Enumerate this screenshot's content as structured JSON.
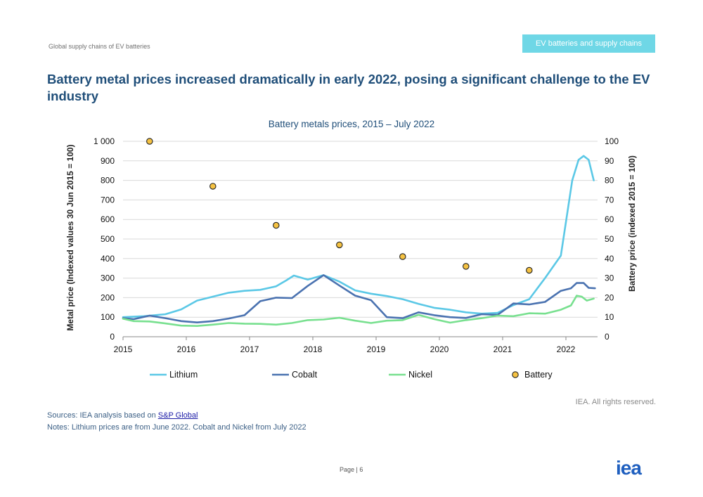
{
  "header": {
    "left_text": "Global supply chains of EV batteries",
    "section_tag": "EV batteries and supply chains"
  },
  "title": "Battery metal prices increased dramatically in early 2022, posing a significant challenge to the EV industry",
  "colors": {
    "lithium": "#5bc8e6",
    "cobalt": "#4a72b0",
    "nickel": "#78e08f",
    "battery": "#f5c242",
    "title": "#1f4e79",
    "tag_bg": "#6fd7e6"
  },
  "chart_data": {
    "type": "line",
    "title": "Battery metals prices, 2015 – July 2022",
    "ylabel": "Metal price (Indexed values 30 Jun 2015 = 100)",
    "y2label": "Battery price (indexed 2015 = 100)",
    "xlim": [
      2015,
      2022.5
    ],
    "ylim": [
      0,
      1000
    ],
    "y2lim": [
      0,
      100
    ],
    "x_ticks": [
      "2015",
      "2016",
      "2017",
      "2018",
      "2019",
      "2020",
      "2021",
      "2022"
    ],
    "y_ticks": [
      "0",
      "100",
      "200",
      "300",
      "400",
      "500",
      "600",
      "700",
      "800",
      "900",
      "1 000"
    ],
    "y2_ticks": [
      "0",
      "10",
      "20",
      "30",
      "40",
      "50",
      "60",
      "70",
      "80",
      "90",
      "100"
    ],
    "legend_placement": "bottom",
    "series": [
      {
        "name": "Lithium",
        "color": "#5bc8e6",
        "axis": "left",
        "points": [
          [
            2015.0,
            100
          ],
          [
            2015.33,
            105
          ],
          [
            2015.67,
            115
          ],
          [
            2015.92,
            140
          ],
          [
            2016.17,
            185
          ],
          [
            2016.42,
            205
          ],
          [
            2016.67,
            225
          ],
          [
            2016.92,
            235
          ],
          [
            2017.17,
            240
          ],
          [
            2017.42,
            258
          ],
          [
            2017.58,
            288
          ],
          [
            2017.7,
            313
          ],
          [
            2017.92,
            292
          ],
          [
            2018.17,
            315
          ],
          [
            2018.42,
            282
          ],
          [
            2018.67,
            237
          ],
          [
            2018.92,
            220
          ],
          [
            2019.17,
            208
          ],
          [
            2019.42,
            192
          ],
          [
            2019.67,
            168
          ],
          [
            2019.92,
            148
          ],
          [
            2020.17,
            138
          ],
          [
            2020.42,
            125
          ],
          [
            2020.67,
            118
          ],
          [
            2020.92,
            122
          ],
          [
            2021.17,
            162
          ],
          [
            2021.42,
            192
          ],
          [
            2021.67,
            300
          ],
          [
            2021.92,
            415
          ],
          [
            2022.1,
            800
          ],
          [
            2022.2,
            905
          ],
          [
            2022.28,
            925
          ],
          [
            2022.36,
            905
          ],
          [
            2022.44,
            800
          ]
        ]
      },
      {
        "name": "Cobalt",
        "color": "#4a72b0",
        "axis": "left",
        "points": [
          [
            2015.0,
            95
          ],
          [
            2015.17,
            90
          ],
          [
            2015.42,
            108
          ],
          [
            2015.67,
            95
          ],
          [
            2015.92,
            80
          ],
          [
            2016.17,
            73
          ],
          [
            2016.42,
            80
          ],
          [
            2016.67,
            93
          ],
          [
            2016.92,
            110
          ],
          [
            2017.17,
            182
          ],
          [
            2017.42,
            200
          ],
          [
            2017.67,
            198
          ],
          [
            2017.92,
            260
          ],
          [
            2018.17,
            315
          ],
          [
            2018.42,
            262
          ],
          [
            2018.67,
            210
          ],
          [
            2018.92,
            187
          ],
          [
            2019.17,
            100
          ],
          [
            2019.42,
            95
          ],
          [
            2019.67,
            125
          ],
          [
            2019.92,
            110
          ],
          [
            2020.17,
            100
          ],
          [
            2020.42,
            96
          ],
          [
            2020.67,
            115
          ],
          [
            2020.92,
            112
          ],
          [
            2021.17,
            170
          ],
          [
            2021.42,
            165
          ],
          [
            2021.67,
            178
          ],
          [
            2021.92,
            235
          ],
          [
            2022.08,
            248
          ],
          [
            2022.17,
            275
          ],
          [
            2022.28,
            275
          ],
          [
            2022.36,
            250
          ],
          [
            2022.46,
            248
          ]
        ]
      },
      {
        "name": "Nickel",
        "color": "#78e08f",
        "axis": "left",
        "points": [
          [
            2015.0,
            92
          ],
          [
            2015.17,
            80
          ],
          [
            2015.42,
            78
          ],
          [
            2015.67,
            68
          ],
          [
            2015.92,
            57
          ],
          [
            2016.17,
            55
          ],
          [
            2016.42,
            62
          ],
          [
            2016.67,
            70
          ],
          [
            2016.92,
            67
          ],
          [
            2017.17,
            66
          ],
          [
            2017.42,
            62
          ],
          [
            2017.67,
            70
          ],
          [
            2017.92,
            85
          ],
          [
            2018.17,
            88
          ],
          [
            2018.42,
            97
          ],
          [
            2018.67,
            82
          ],
          [
            2018.92,
            70
          ],
          [
            2019.17,
            82
          ],
          [
            2019.42,
            85
          ],
          [
            2019.67,
            112
          ],
          [
            2019.92,
            90
          ],
          [
            2020.17,
            72
          ],
          [
            2020.42,
            85
          ],
          [
            2020.67,
            95
          ],
          [
            2020.92,
            108
          ],
          [
            2021.17,
            105
          ],
          [
            2021.42,
            120
          ],
          [
            2021.67,
            118
          ],
          [
            2021.92,
            138
          ],
          [
            2022.08,
            160
          ],
          [
            2022.17,
            210
          ],
          [
            2022.25,
            205
          ],
          [
            2022.33,
            185
          ],
          [
            2022.44,
            195
          ]
        ]
      }
    ],
    "battery": {
      "name": "Battery",
      "color": "#f5c242",
      "axis": "right",
      "x": [
        2015.42,
        2016.42,
        2017.42,
        2018.42,
        2019.42,
        2020.42,
        2021.42
      ],
      "values": [
        100,
        77,
        57,
        47,
        41,
        36,
        34
      ]
    }
  },
  "footer": {
    "rights": "IEA. All rights reserved.",
    "sources_prefix": "Sources: IEA analysis based on ",
    "sources_link": "S&P Global",
    "notes": "Notes: Lithium prices are from June 2022. Cobalt and Nickel from July 2022",
    "page_label": "Page | 6",
    "logo": "iea"
  }
}
